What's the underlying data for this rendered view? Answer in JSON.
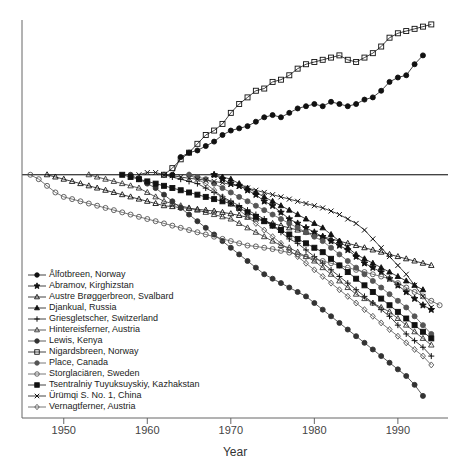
{
  "chart_data": {
    "type": "line",
    "title": "",
    "xlabel": "Year",
    "xlim": [
      1945,
      1996
    ],
    "xticks": [
      1950,
      1960,
      1970,
      1980,
      1990
    ],
    "ylim": [
      -5.5,
      3.5
    ],
    "tick_labels": "x",
    "legend": "lower left",
    "hline": 0.0,
    "series": [
      {
        "name": "Ålfotbreen, Norway",
        "marker": "circle",
        "color": "#111111",
        "x": [
          1963,
          1964,
          1965,
          1966,
          1967,
          1968,
          1969,
          1970,
          1971,
          1972,
          1973,
          1974,
          1975,
          1976,
          1977,
          1978,
          1979,
          1980,
          1981,
          1982,
          1983,
          1984,
          1985,
          1986,
          1987,
          1988,
          1989,
          1990,
          1991,
          1992,
          1993
        ],
        "values": [
          0.0,
          0.4,
          0.5,
          0.55,
          0.65,
          0.75,
          0.9,
          1.0,
          1.05,
          1.1,
          1.2,
          1.3,
          1.35,
          1.3,
          1.4,
          1.5,
          1.55,
          1.6,
          1.55,
          1.65,
          1.6,
          1.55,
          1.6,
          1.7,
          1.75,
          1.9,
          2.1,
          2.2,
          2.25,
          2.5,
          2.7
        ]
      },
      {
        "name": "Abramov, Kirghizstan",
        "marker": "star",
        "color": "#111111",
        "x": [
          1968,
          1969,
          1970,
          1971,
          1972,
          1973,
          1974,
          1975,
          1976,
          1977,
          1978,
          1979,
          1980,
          1981,
          1982,
          1983,
          1984,
          1985,
          1986,
          1987,
          1988,
          1989,
          1990,
          1991,
          1992,
          1993,
          1994
        ],
        "values": [
          0.0,
          -0.1,
          -0.2,
          -0.25,
          -0.35,
          -0.45,
          -0.6,
          -0.7,
          -0.85,
          -1.0,
          -1.1,
          -1.2,
          -1.3,
          -1.4,
          -1.5,
          -1.6,
          -1.7,
          -1.85,
          -2.0,
          -2.1,
          -2.2,
          -2.35,
          -2.5,
          -2.65,
          -2.8,
          -2.95,
          -3.05
        ]
      },
      {
        "name": "Austre Brøggerbreon, Svalbard",
        "marker": "triangle-open",
        "color": "#111111",
        "x": [
          1948,
          1949,
          1950,
          1951,
          1952,
          1953,
          1954,
          1955,
          1956,
          1957,
          1958,
          1959,
          1960,
          1961,
          1962,
          1963,
          1964,
          1965,
          1966,
          1967,
          1968,
          1969,
          1970,
          1971,
          1972,
          1973,
          1974,
          1975,
          1976,
          1977,
          1978,
          1979,
          1980,
          1981,
          1982,
          1983,
          1984,
          1985,
          1986,
          1987,
          1988,
          1989,
          1990,
          1991,
          1992,
          1993,
          1994
        ],
        "values": [
          0.0,
          -0.05,
          -0.1,
          -0.15,
          -0.2,
          -0.25,
          -0.3,
          -0.35,
          -0.4,
          -0.45,
          -0.5,
          -0.55,
          -0.6,
          -0.65,
          -0.7,
          -0.72,
          -0.74,
          -0.76,
          -0.78,
          -0.8,
          -0.82,
          -0.85,
          -0.88,
          -0.92,
          -0.96,
          -1.0,
          -1.05,
          -1.1,
          -1.15,
          -1.2,
          -1.25,
          -1.3,
          -1.35,
          -1.4,
          -1.45,
          -1.5,
          -1.55,
          -1.6,
          -1.65,
          -1.7,
          -1.75,
          -1.8,
          -1.85,
          -1.9,
          -1.95,
          -2.0,
          -2.05
        ]
      },
      {
        "name": "Djankual, Russia",
        "marker": "triangle",
        "color": "#111111",
        "x": [
          1968,
          1969,
          1970,
          1971,
          1972,
          1973,
          1974,
          1975,
          1976,
          1977,
          1978,
          1979,
          1980,
          1981,
          1982,
          1983,
          1984,
          1985,
          1986,
          1987,
          1988,
          1989,
          1990,
          1991,
          1992,
          1993
        ],
        "values": [
          0.0,
          -0.05,
          -0.1,
          -0.2,
          -0.3,
          -0.4,
          -0.5,
          -0.6,
          -0.7,
          -0.8,
          -0.9,
          -1.0,
          -1.1,
          -1.2,
          -1.35,
          -1.5,
          -1.65,
          -1.8,
          -1.9,
          -2.0,
          -2.1,
          -2.2,
          -2.3,
          -2.4,
          -2.5,
          -2.6
        ]
      },
      {
        "name": "Griesgletscher, Switzerland",
        "marker": "plus",
        "color": "#111111",
        "x": [
          1962,
          1963,
          1964,
          1965,
          1966,
          1967,
          1968,
          1969,
          1970,
          1971,
          1972,
          1973,
          1974,
          1975,
          1976,
          1977,
          1978,
          1979,
          1980,
          1981,
          1982,
          1983,
          1984,
          1985,
          1986,
          1987,
          1988,
          1989,
          1990,
          1991,
          1992,
          1993,
          1994
        ],
        "values": [
          0.0,
          -0.05,
          -0.1,
          -0.15,
          -0.2,
          -0.3,
          -0.4,
          -0.5,
          -0.6,
          -0.7,
          -0.8,
          -0.9,
          -1.0,
          -1.15,
          -1.3,
          -1.45,
          -1.55,
          -1.7,
          -1.85,
          -2.0,
          -2.15,
          -2.3,
          -2.45,
          -2.6,
          -2.75,
          -2.9,
          -3.05,
          -3.2,
          -3.4,
          -3.6,
          -3.75,
          -3.9,
          -4.1
        ]
      },
      {
        "name": "Hintereisferner, Austria",
        "marker": "triangle-open",
        "color": "#333333",
        "x": [
          1953,
          1954,
          1955,
          1956,
          1957,
          1958,
          1959,
          1960,
          1961,
          1962,
          1963,
          1964,
          1965,
          1966,
          1967,
          1968,
          1969,
          1970,
          1971,
          1972,
          1973,
          1974,
          1975,
          1976,
          1977,
          1978,
          1979,
          1980,
          1981,
          1982,
          1983,
          1984,
          1985,
          1986,
          1987,
          1988,
          1989,
          1990,
          1991,
          1992,
          1993,
          1994
        ],
        "values": [
          0.0,
          -0.05,
          -0.1,
          -0.15,
          -0.2,
          -0.25,
          -0.3,
          -0.4,
          -0.5,
          -0.6,
          -0.65,
          -0.7,
          -0.75,
          -0.8,
          -0.85,
          -0.9,
          -0.95,
          -1.0,
          -1.1,
          -1.2,
          -1.3,
          -1.4,
          -1.5,
          -1.6,
          -1.65,
          -1.75,
          -1.85,
          -1.95,
          -2.1,
          -2.25,
          -2.4,
          -2.55,
          -2.7,
          -2.8,
          -2.9,
          -3.0,
          -3.1,
          -3.25,
          -3.4,
          -3.55,
          -3.7,
          -3.85
        ]
      },
      {
        "name": "Lewis, Kenya",
        "marker": "circle",
        "color": "#333333",
        "x": [
          1958,
          1959,
          1960,
          1961,
          1962,
          1963,
          1964,
          1965,
          1966,
          1967,
          1968,
          1969,
          1970,
          1971,
          1972,
          1973,
          1974,
          1975,
          1976,
          1977,
          1978,
          1979,
          1980,
          1981,
          1982,
          1983,
          1984,
          1985,
          1986,
          1987,
          1988,
          1989,
          1990,
          1991,
          1992,
          1993
        ],
        "values": [
          0.0,
          -0.1,
          -0.2,
          -0.3,
          -0.45,
          -0.6,
          -0.75,
          -0.9,
          -1.05,
          -1.2,
          -1.35,
          -1.5,
          -1.65,
          -1.8,
          -1.95,
          -2.1,
          -2.25,
          -2.35,
          -2.45,
          -2.55,
          -2.65,
          -2.75,
          -2.9,
          -3.05,
          -3.2,
          -3.35,
          -3.5,
          -3.65,
          -3.8,
          -3.95,
          -4.1,
          -4.25,
          -4.4,
          -4.55,
          -4.75,
          -5.0
        ]
      },
      {
        "name": "Nigardsbreen, Norway",
        "marker": "square-open",
        "color": "#111111",
        "x": [
          1962,
          1963,
          1964,
          1965,
          1966,
          1967,
          1968,
          1969,
          1970,
          1971,
          1972,
          1973,
          1974,
          1975,
          1976,
          1977,
          1978,
          1979,
          1980,
          1981,
          1982,
          1983,
          1984,
          1985,
          1986,
          1987,
          1988,
          1989,
          1990,
          1991,
          1992,
          1993,
          1994
        ],
        "values": [
          0.0,
          0.15,
          0.35,
          0.5,
          0.7,
          0.9,
          1.0,
          1.15,
          1.4,
          1.6,
          1.75,
          1.9,
          1.95,
          2.1,
          2.15,
          2.25,
          2.4,
          2.5,
          2.55,
          2.6,
          2.65,
          2.7,
          2.6,
          2.55,
          2.65,
          2.75,
          2.9,
          3.1,
          3.2,
          3.25,
          3.3,
          3.35,
          3.4
        ]
      },
      {
        "name": "Place, Canada",
        "marker": "circle",
        "color": "#555555",
        "x": [
          1965,
          1966,
          1967,
          1968,
          1969,
          1970,
          1971,
          1972,
          1973,
          1974,
          1975,
          1976,
          1977,
          1978,
          1979,
          1980,
          1981,
          1982,
          1983,
          1984,
          1985,
          1986,
          1987,
          1988,
          1989,
          1990,
          1991,
          1992,
          1993,
          1994
        ],
        "values": [
          0.0,
          -0.05,
          -0.1,
          -0.2,
          -0.3,
          -0.4,
          -0.5,
          -0.6,
          -0.7,
          -0.8,
          -0.9,
          -1.0,
          -1.1,
          -1.2,
          -1.3,
          -1.4,
          -1.5,
          -1.65,
          -1.8,
          -1.95,
          -2.1,
          -2.25,
          -2.4,
          -2.55,
          -2.7,
          -2.85,
          -3.0,
          -3.2,
          -3.4,
          -3.6
        ]
      },
      {
        "name": "Storglaciären, Sweden",
        "marker": "circle-open",
        "color": "#555555",
        "x": [
          1946,
          1947,
          1948,
          1949,
          1950,
          1951,
          1952,
          1953,
          1954,
          1955,
          1956,
          1957,
          1958,
          1959,
          1960,
          1961,
          1962,
          1963,
          1964,
          1965,
          1966,
          1967,
          1968,
          1969,
          1970,
          1971,
          1972,
          1973,
          1974,
          1975,
          1976,
          1977,
          1978,
          1979,
          1980,
          1981,
          1982,
          1983,
          1984,
          1985,
          1986,
          1987,
          1988,
          1989,
          1990,
          1991,
          1992,
          1993,
          1994,
          1995
        ],
        "values": [
          0.0,
          -0.1,
          -0.25,
          -0.4,
          -0.5,
          -0.55,
          -0.6,
          -0.65,
          -0.7,
          -0.75,
          -0.8,
          -0.85,
          -0.9,
          -0.95,
          -1.0,
          -1.05,
          -1.1,
          -1.15,
          -1.2,
          -1.25,
          -1.3,
          -1.35,
          -1.4,
          -1.45,
          -1.5,
          -1.55,
          -1.6,
          -1.62,
          -1.65,
          -1.68,
          -1.72,
          -1.76,
          -1.8,
          -1.85,
          -1.9,
          -1.95,
          -2.0,
          -2.05,
          -2.1,
          -2.15,
          -2.2,
          -2.25,
          -2.3,
          -2.35,
          -2.45,
          -2.55,
          -2.65,
          -2.75,
          -2.85,
          -2.95
        ]
      },
      {
        "name": "Tsentralniy Tuyuksuyskiy, Kazhakstan",
        "marker": "square",
        "color": "#111111",
        "x": [
          1957,
          1958,
          1959,
          1960,
          1961,
          1962,
          1963,
          1964,
          1965,
          1966,
          1967,
          1968,
          1969,
          1970,
          1971,
          1972,
          1973,
          1974,
          1975,
          1976,
          1977,
          1978,
          1979,
          1980,
          1981,
          1982,
          1983,
          1984,
          1985,
          1986,
          1987,
          1988,
          1989,
          1990,
          1991,
          1992,
          1993,
          1994
        ],
        "values": [
          0.0,
          -0.05,
          -0.1,
          -0.15,
          -0.2,
          -0.25,
          -0.3,
          -0.35,
          -0.4,
          -0.45,
          -0.5,
          -0.55,
          -0.6,
          -0.65,
          -0.75,
          -0.85,
          -0.95,
          -1.05,
          -1.15,
          -1.25,
          -1.35,
          -1.45,
          -1.55,
          -1.65,
          -1.75,
          -1.9,
          -2.05,
          -2.2,
          -2.35,
          -2.5,
          -2.65,
          -2.8,
          -2.95,
          -3.1,
          -3.25,
          -3.4,
          -3.55,
          -3.7
        ]
      },
      {
        "name": "Ürümqi S. No. 1, China",
        "marker": "cross",
        "color": "#111111",
        "x": [
          1959,
          1960,
          1961,
          1962,
          1963,
          1964,
          1965,
          1966,
          1967,
          1968,
          1969,
          1970,
          1971,
          1972,
          1973,
          1974,
          1975,
          1976,
          1977,
          1978,
          1979,
          1980,
          1981,
          1982,
          1983,
          1984,
          1985,
          1986,
          1987,
          1988,
          1989,
          1990,
          1991,
          1992,
          1993,
          1994
        ],
        "values": [
          0.0,
          0.05,
          0.05,
          0.0,
          -0.02,
          -0.05,
          -0.08,
          -0.1,
          -0.12,
          -0.15,
          -0.18,
          -0.22,
          -0.26,
          -0.3,
          -0.35,
          -0.4,
          -0.45,
          -0.5,
          -0.55,
          -0.6,
          -0.65,
          -0.7,
          -0.75,
          -0.82,
          -0.9,
          -1.0,
          -1.1,
          -1.25,
          -1.45,
          -1.65,
          -1.85,
          -2.05,
          -2.25,
          -2.5,
          -2.75,
          -3.0
        ]
      },
      {
        "name": "Vernagtferner, Austria",
        "marker": "diamond-open",
        "color": "#555555",
        "x": [
          1965,
          1966,
          1967,
          1968,
          1969,
          1970,
          1971,
          1972,
          1973,
          1974,
          1975,
          1976,
          1977,
          1978,
          1979,
          1980,
          1981,
          1982,
          1983,
          1984,
          1985,
          1986,
          1987,
          1988,
          1989,
          1990,
          1991,
          1992,
          1993,
          1994
        ],
        "values": [
          0.0,
          -0.1,
          -0.2,
          -0.35,
          -0.5,
          -0.65,
          -0.8,
          -0.95,
          -1.1,
          -1.25,
          -1.4,
          -1.55,
          -1.7,
          -1.85,
          -2.0,
          -2.15,
          -2.3,
          -2.45,
          -2.6,
          -2.75,
          -2.9,
          -3.05,
          -3.2,
          -3.35,
          -3.5,
          -3.65,
          -3.8,
          -3.95,
          -4.1,
          -4.3
        ]
      }
    ]
  }
}
